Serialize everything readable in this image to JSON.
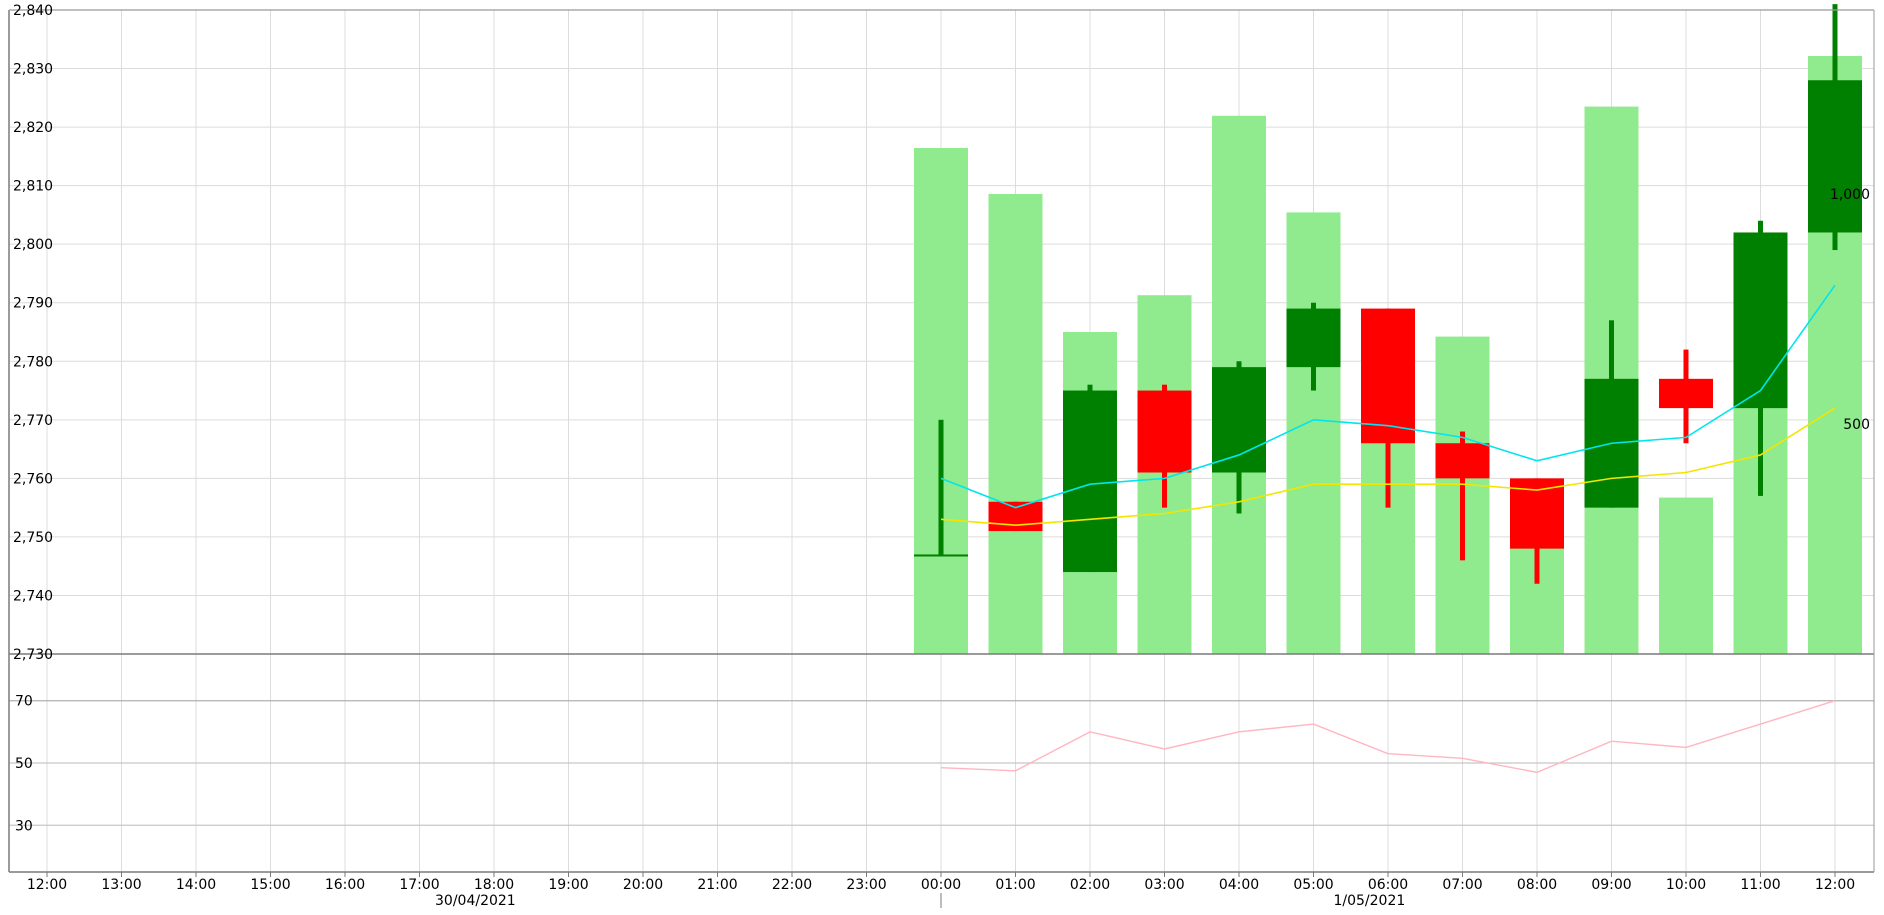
{
  "chart_data": [
    {
      "type": "candlestick",
      "panel": "price",
      "yaxis": {
        "ticks": [
          "2,730",
          "2,740",
          "2,750",
          "2,760",
          "2,770",
          "2,780",
          "2,790",
          "2,800",
          "2,810",
          "2,820",
          "2,830",
          "2,840"
        ],
        "tick_values": [
          2730,
          2740,
          2750,
          2760,
          2770,
          2780,
          2790,
          2800,
          2810,
          2820,
          2830,
          2840
        ],
        "ylim": [
          2730,
          2840
        ],
        "position": "left"
      },
      "volume_axis": {
        "ticks": [
          "1,000",
          "500"
        ],
        "tick_values": [
          1000,
          500
        ],
        "ylim": [
          0,
          1400
        ],
        "position": "right"
      },
      "candles": [
        {
          "time": "00:00",
          "open": 2747,
          "high": 2770,
          "low": 2747,
          "close": 2747,
          "color": "green"
        },
        {
          "time": "01:00",
          "open": 2756,
          "high": 2756,
          "low": 2751,
          "close": 2751,
          "color": "red"
        },
        {
          "time": "02:00",
          "open": 2744,
          "high": 2776,
          "low": 2744,
          "close": 2775,
          "color": "green"
        },
        {
          "time": "03:00",
          "open": 2775,
          "high": 2776,
          "low": 2755,
          "close": 2761,
          "color": "red"
        },
        {
          "time": "04:00",
          "open": 2761,
          "high": 2780,
          "low": 2754,
          "close": 2779,
          "color": "green"
        },
        {
          "time": "05:00",
          "open": 2779,
          "high": 2790,
          "low": 2775,
          "close": 2789,
          "color": "green"
        },
        {
          "time": "06:00",
          "open": 2789,
          "high": 2789,
          "low": 2755,
          "close": 2766,
          "color": "red"
        },
        {
          "time": "07:00",
          "open": 2766,
          "high": 2768,
          "low": 2746,
          "close": 2760,
          "color": "red"
        },
        {
          "time": "08:00",
          "open": 2760,
          "high": 2760,
          "low": 2742,
          "close": 2748,
          "color": "red"
        },
        {
          "time": "09:00",
          "open": 2755,
          "high": 2787,
          "low": 2755,
          "close": 2777,
          "color": "green"
        },
        {
          "time": "10:00",
          "open": 2777,
          "high": 2782,
          "low": 2766,
          "close": 2772,
          "color": "red"
        },
        {
          "time": "11:00",
          "open": 2772,
          "high": 2804,
          "low": 2757,
          "close": 2802,
          "color": "green"
        },
        {
          "time": "12:00",
          "open": 2802,
          "high": 2841,
          "low": 2799,
          "close": 2828,
          "color": "green"
        }
      ],
      "volume": [
        1100,
        1000,
        700,
        780,
        1170,
        960,
        470,
        690,
        300,
        1190,
        340,
        800,
        1300
      ],
      "moving_averages": [
        {
          "color": "#00e5ee",
          "values": [
            2760,
            2755,
            2759,
            2760,
            2764,
            2770,
            2769,
            2767,
            2763,
            2766,
            2767,
            2775,
            2793
          ]
        },
        {
          "color": "#f2e600",
          "values": [
            2753,
            2752,
            2753,
            2754,
            2756,
            2759,
            2759,
            2759,
            2758,
            2760,
            2761,
            2764,
            2772
          ]
        }
      ],
      "colors": {
        "up": "#008000",
        "down": "#ff0000",
        "volume": "#90ea8e"
      }
    },
    {
      "type": "line",
      "panel": "oscillator",
      "yaxis": {
        "ticks": [
          "70",
          "50",
          "30"
        ],
        "tick_values": [
          70,
          50,
          30
        ],
        "ylim": [
          15,
          85
        ]
      },
      "series": [
        {
          "color": "#ffb6c1",
          "values": [
            48.5,
            47.5,
            60,
            54.5,
            60,
            62.5,
            53,
            51.5,
            47,
            57,
            55,
            62.5,
            70
          ]
        }
      ]
    }
  ],
  "xaxis": {
    "hour_labels": [
      "12:00",
      "13:00",
      "14:00",
      "15:00",
      "16:00",
      "17:00",
      "18:00",
      "19:00",
      "20:00",
      "21:00",
      "22:00",
      "23:00",
      "00:00",
      "01:00",
      "02:00",
      "03:00",
      "04:00",
      "05:00",
      "06:00",
      "07:00",
      "08:00",
      "09:00",
      "10:00",
      "11:00",
      "12:00"
    ],
    "date_labels": [
      {
        "text": "30/04/2021",
        "at_hour_index": 5.75
      },
      {
        "text": "1/05/2021",
        "at_hour_index": 17.75
      }
    ],
    "day_break_hour_index": 12
  }
}
